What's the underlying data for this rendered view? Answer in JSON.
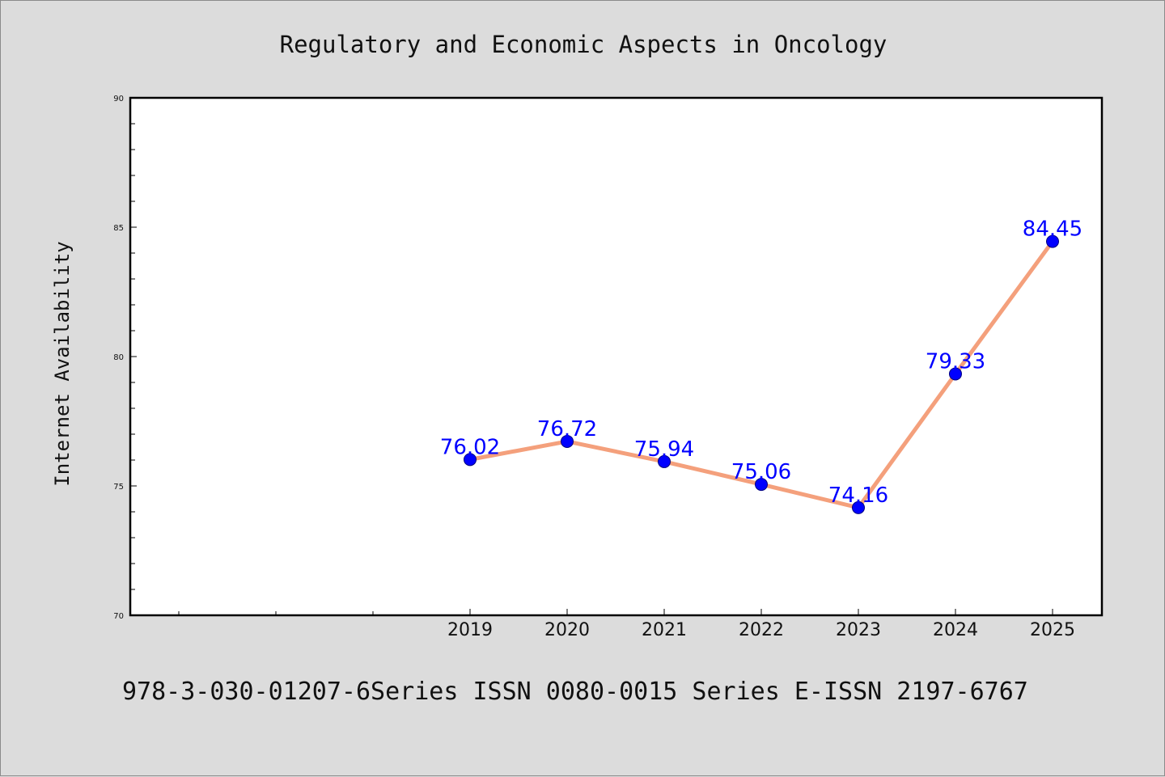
{
  "chart_data": {
    "type": "line",
    "title": "Regulatory and Economic Aspects in Oncology",
    "ylabel": "Internet Availability",
    "xlabel": "",
    "categories": [
      "2019",
      "2020",
      "2021",
      "2022",
      "2023",
      "2024",
      "2025"
    ],
    "series": [
      {
        "values": [
          76.02,
          76.72,
          75.94,
          75.06,
          74.16,
          79.33,
          84.45
        ],
        "labels": [
          "76.02",
          "76.72",
          "75.94",
          "75.06",
          "74.16",
          "79.33",
          "84.45"
        ]
      }
    ],
    "ylim": [
      70,
      90
    ],
    "yticks": [
      "70",
      "75",
      "80",
      "85",
      "90"
    ],
    "grid": false,
    "legend": "none",
    "colors": {
      "line": "#f4a07c",
      "marker": "#0000ff",
      "marker_edge": "#000080",
      "data_label": "#0000ff",
      "plot_bg": "#ffffff",
      "page_bg": "#dcdcdc"
    }
  },
  "footer": "978-3-030-01207-6Series ISSN 0080-0015 Series E-ISSN 2197-6767"
}
